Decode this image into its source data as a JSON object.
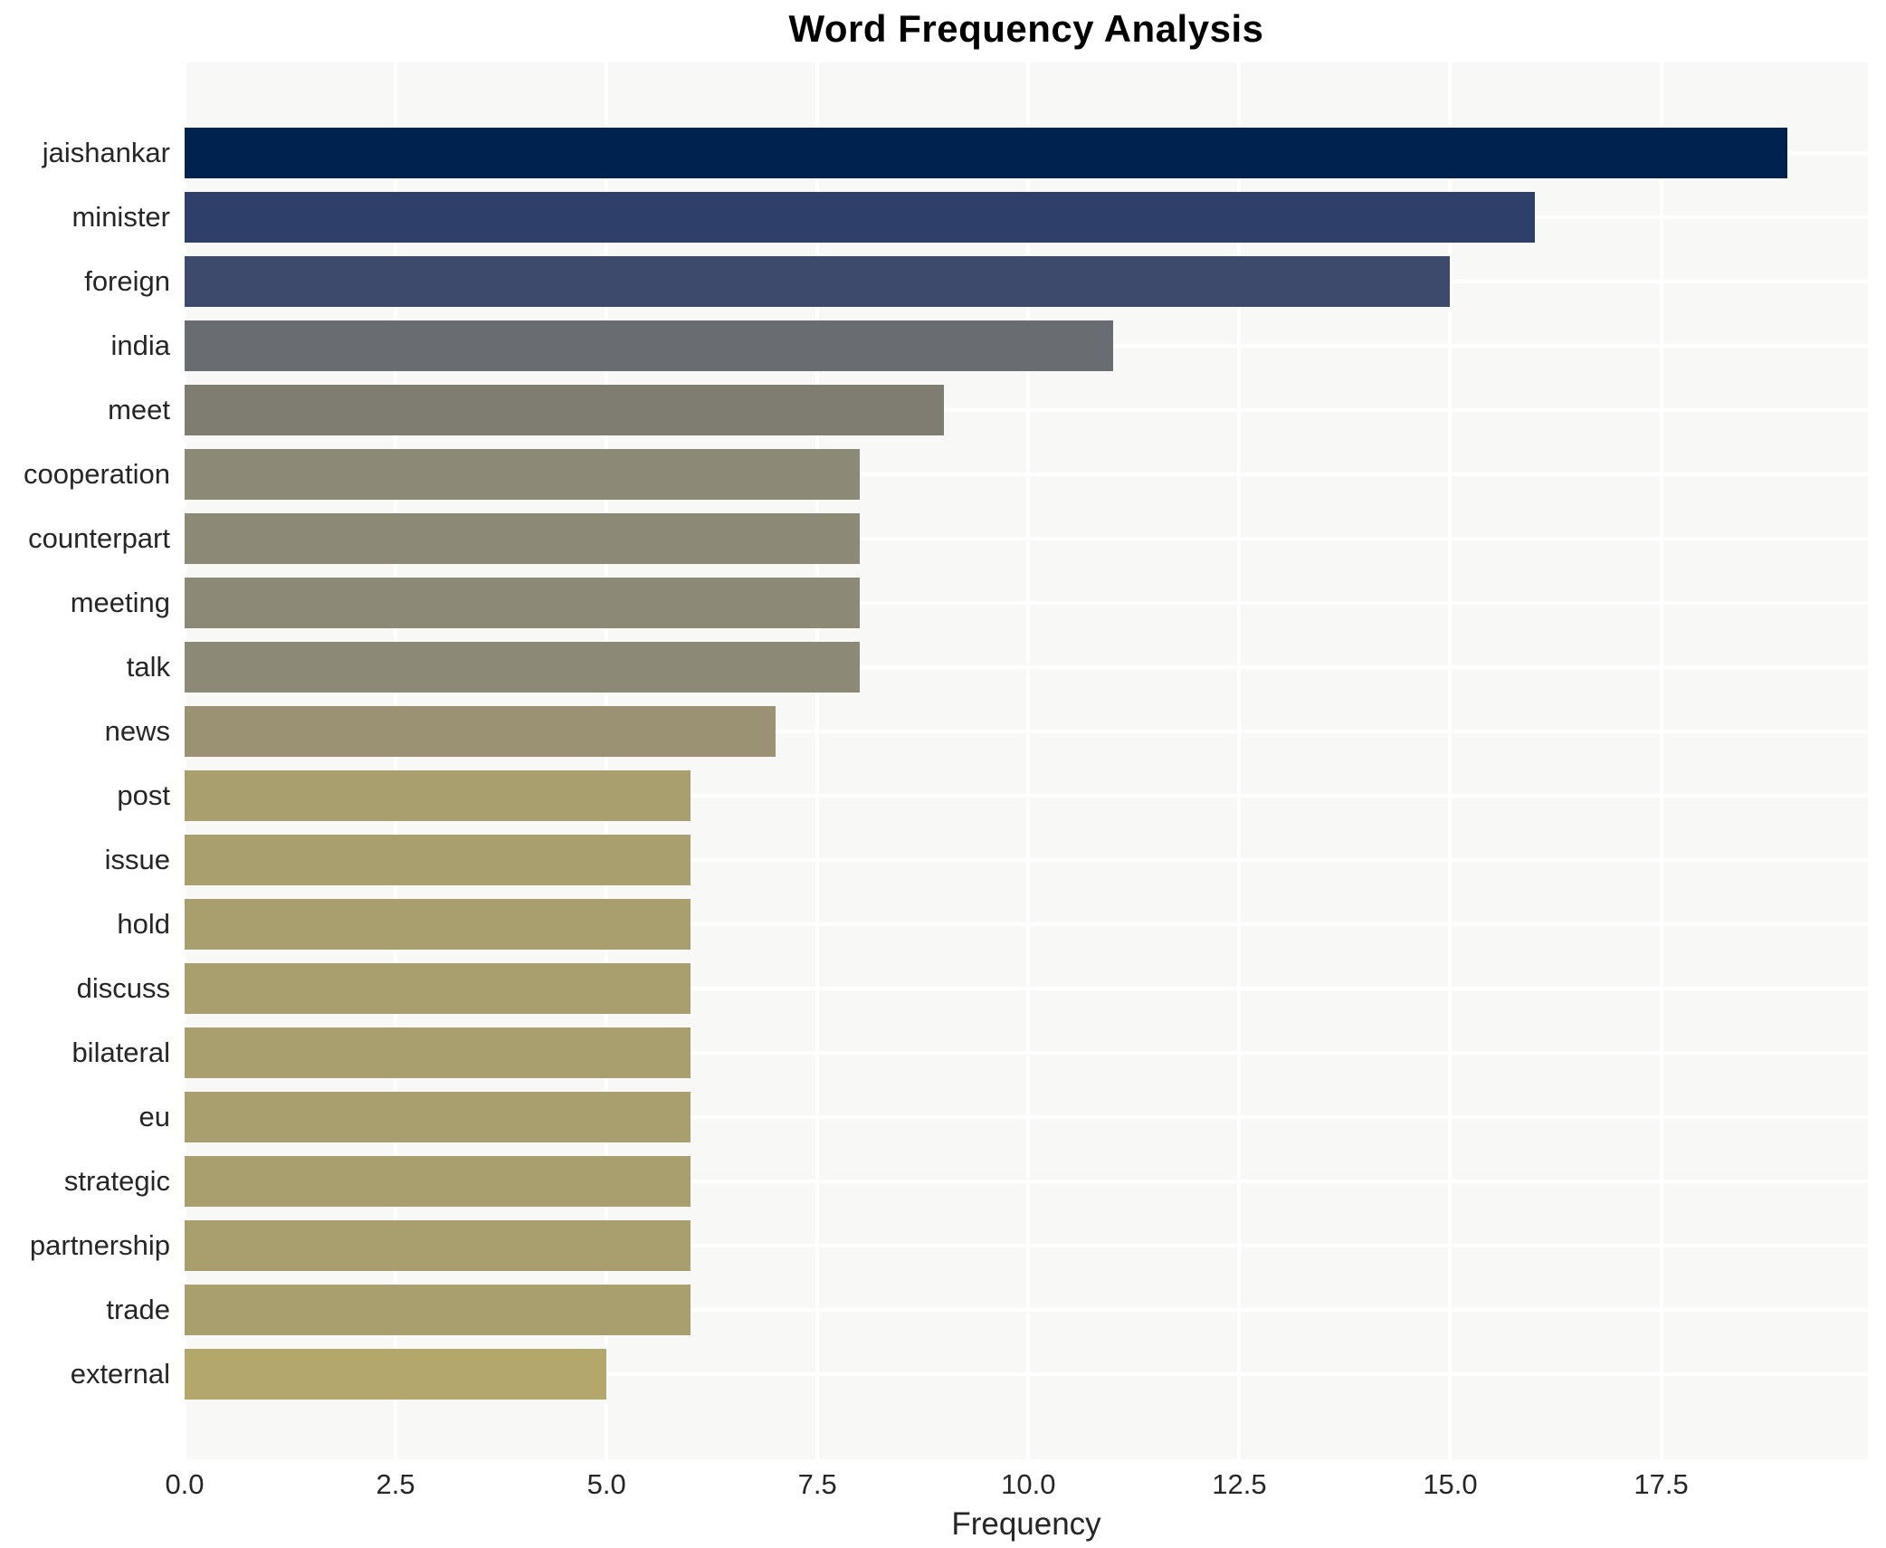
{
  "chart_data": {
    "type": "bar",
    "orientation": "horizontal",
    "title": "Word Frequency Analysis",
    "xlabel": "Frequency",
    "ylabel": "",
    "categories": [
      "jaishankar",
      "minister",
      "foreign",
      "india",
      "meet",
      "cooperation",
      "counterpart",
      "meeting",
      "talk",
      "news",
      "post",
      "issue",
      "hold",
      "discuss",
      "bilateral",
      "eu",
      "strategic",
      "partnership",
      "trade",
      "external"
    ],
    "values": [
      19,
      16,
      15,
      11,
      9,
      8,
      8,
      8,
      8,
      7,
      6,
      6,
      6,
      6,
      6,
      6,
      6,
      6,
      6,
      5
    ],
    "bar_colors": [
      "#00224e",
      "#2e406a",
      "#3e4a6c",
      "#696c71",
      "#7f7d72",
      "#8d8977",
      "#8d8977",
      "#8d8977",
      "#8d8977",
      "#9a9272",
      "#a89e6e",
      "#a89e6e",
      "#a89e6e",
      "#a89e6e",
      "#a89e6e",
      "#a89e6e",
      "#a89e6e",
      "#a89e6e",
      "#a89e6e",
      "#b3a76c"
    ],
    "xlim": [
      0,
      19.95
    ],
    "xticks": [
      0,
      2.5,
      5,
      7.5,
      10,
      12.5,
      15,
      17.5
    ],
    "xtick_labels": [
      "0.0",
      "2.5",
      "5.0",
      "7.5",
      "10.0",
      "12.5",
      "15.0",
      "17.5"
    ],
    "grid": true,
    "legend_position": "none",
    "plot_background": "#f8f8f7",
    "gridline_color": "#ffffff",
    "text_color": "#262626"
  }
}
